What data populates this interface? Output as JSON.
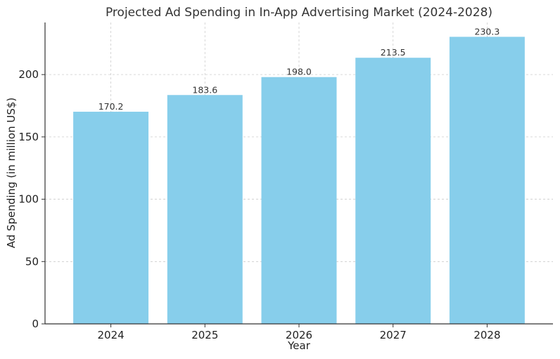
{
  "chart_data": {
    "type": "bar",
    "title": "Projected Ad Spending in In-App Advertising Market (2024-2028)",
    "xlabel": "Year",
    "ylabel": "Ad Spending (in million US$)",
    "categories": [
      "2024",
      "2025",
      "2026",
      "2027",
      "2028"
    ],
    "values": [
      170.2,
      183.6,
      198.0,
      213.5,
      230.3
    ],
    "data_labels": [
      "170.2",
      "183.6",
      "198.0",
      "213.5",
      "230.3"
    ],
    "y_ticks": [
      0,
      50,
      100,
      150,
      200
    ],
    "ylim": [
      0,
      241.8
    ],
    "grid": true,
    "bar_color": "#87CEEB"
  }
}
